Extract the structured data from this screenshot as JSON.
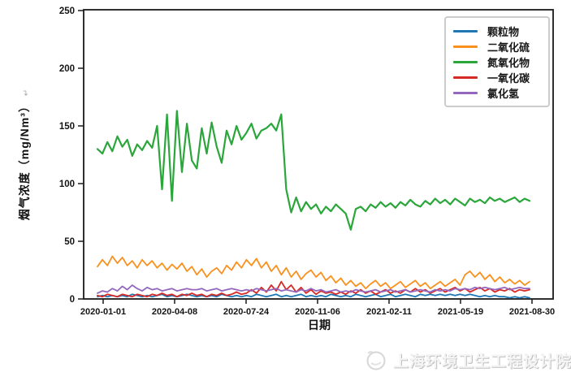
{
  "figure": {
    "ylabel_paragraph_mark": "↵"
  },
  "footer": {
    "org_name": "上海环境卫生工程设计院"
  },
  "chart_data": {
    "type": "line",
    "title": "",
    "xlabel": "日期",
    "ylabel": "烟气浓度（mg/Nm³）",
    "ylim": [
      0,
      250
    ],
    "y_ticks": [
      0,
      50,
      100,
      150,
      200,
      250
    ],
    "x_tick_labels": [
      "2020-01-01",
      "2020-04-08",
      "2020-07-24",
      "2020-11-06",
      "2021-02-11",
      "2021-05-19",
      "2021-08-30"
    ],
    "x_sampling": "weekly_index_0_to_87",
    "grid": false,
    "legend_position": "upper right",
    "axis_color": "#1a1a1a",
    "series": [
      {
        "name": "颗粒物",
        "color": "#1f77b4",
        "values": [
          2,
          3,
          2,
          3,
          2,
          3,
          2,
          4,
          3,
          2,
          3,
          2,
          3,
          4,
          2,
          3,
          2,
          3,
          4,
          3,
          2,
          3,
          2,
          3,
          2,
          4,
          3,
          2,
          3,
          2,
          3,
          2,
          4,
          3,
          2,
          3,
          4,
          2,
          3,
          2,
          3,
          4,
          2,
          3,
          2,
          3,
          2,
          4,
          3,
          2,
          3,
          2,
          4,
          3,
          2,
          3,
          4,
          2,
          3,
          4,
          2,
          3,
          4,
          3,
          2,
          4,
          3,
          4,
          3,
          4,
          3,
          4,
          3,
          4,
          3,
          4,
          3,
          2,
          3,
          2,
          3,
          2,
          2,
          1,
          2,
          1,
          2,
          1
        ]
      },
      {
        "name": "二氧化硫",
        "color": "#f8911e",
        "values": [
          28,
          34,
          29,
          37,
          31,
          36,
          29,
          33,
          27,
          34,
          29,
          33,
          27,
          31,
          25,
          30,
          26,
          31,
          24,
          28,
          21,
          26,
          19,
          24,
          27,
          22,
          29,
          25,
          32,
          27,
          34,
          29,
          35,
          27,
          32,
          24,
          29,
          21,
          27,
          19,
          24,
          17,
          22,
          25,
          19,
          23,
          16,
          20,
          14,
          18,
          12,
          16,
          11,
          14,
          9,
          13,
          16,
          11,
          14,
          9,
          12,
          15,
          10,
          13,
          16,
          11,
          14,
          9,
          12,
          15,
          11,
          14,
          17,
          12,
          21,
          24,
          19,
          23,
          17,
          21,
          15,
          19,
          14,
          17,
          13,
          16,
          12,
          15
        ]
      },
      {
        "name": "氮氧化物",
        "color": "#2aa63a",
        "values": [
          130,
          126,
          136,
          128,
          141,
          132,
          138,
          124,
          134,
          129,
          137,
          131,
          150,
          95,
          160,
          85,
          163,
          110,
          152,
          120,
          113,
          148,
          126,
          153,
          132,
          118,
          146,
          134,
          150,
          138,
          144,
          152,
          139,
          146,
          148,
          152,
          146,
          160,
          95,
          75,
          88,
          76,
          84,
          78,
          82,
          74,
          80,
          76,
          82,
          78,
          74,
          60,
          78,
          80,
          76,
          82,
          79,
          84,
          80,
          83,
          79,
          84,
          81,
          86,
          82,
          80,
          85,
          82,
          87,
          83,
          86,
          82,
          87,
          84,
          81,
          87,
          84,
          86,
          83,
          88,
          85,
          87,
          84,
          86,
          88,
          84,
          87,
          85
        ]
      },
      {
        "name": "一氧化碳",
        "color": "#d62a26",
        "values": [
          3,
          2,
          4,
          3,
          2,
          4,
          3,
          2,
          4,
          3,
          2,
          4,
          3,
          5,
          3,
          4,
          2,
          4,
          3,
          5,
          3,
          4,
          2,
          4,
          3,
          5,
          3,
          4,
          6,
          4,
          5,
          8,
          5,
          10,
          6,
          12,
          7,
          15,
          8,
          12,
          6,
          10,
          5,
          8,
          4,
          7,
          5,
          6,
          4,
          6,
          4,
          7,
          5,
          8,
          5,
          7,
          4,
          6,
          8,
          5,
          7,
          5,
          8,
          6,
          9,
          6,
          8,
          5,
          7,
          9,
          6,
          8,
          10,
          7,
          9,
          6,
          8,
          10,
          7,
          9,
          6,
          8,
          7,
          9,
          6,
          8,
          7,
          8
        ]
      },
      {
        "name": "氯化氢",
        "color": "#9467bd",
        "values": [
          5,
          7,
          6,
          9,
          7,
          11,
          8,
          12,
          9,
          7,
          10,
          8,
          9,
          7,
          8,
          9,
          7,
          8,
          9,
          8,
          8,
          9,
          7,
          8,
          9,
          7,
          8,
          9,
          8,
          7,
          8,
          7,
          9,
          8,
          7,
          8,
          9,
          7,
          8,
          7,
          6,
          8,
          7,
          9,
          7,
          8,
          6,
          7,
          8,
          6,
          7,
          6,
          8,
          7,
          6,
          7,
          8,
          6,
          7,
          8,
          6,
          7,
          8,
          6,
          7,
          8,
          7,
          6,
          8,
          7,
          8,
          7,
          9,
          8,
          9,
          8,
          10,
          9,
          10,
          9,
          8,
          9,
          10,
          8,
          9,
          10,
          9,
          9
        ]
      }
    ]
  }
}
